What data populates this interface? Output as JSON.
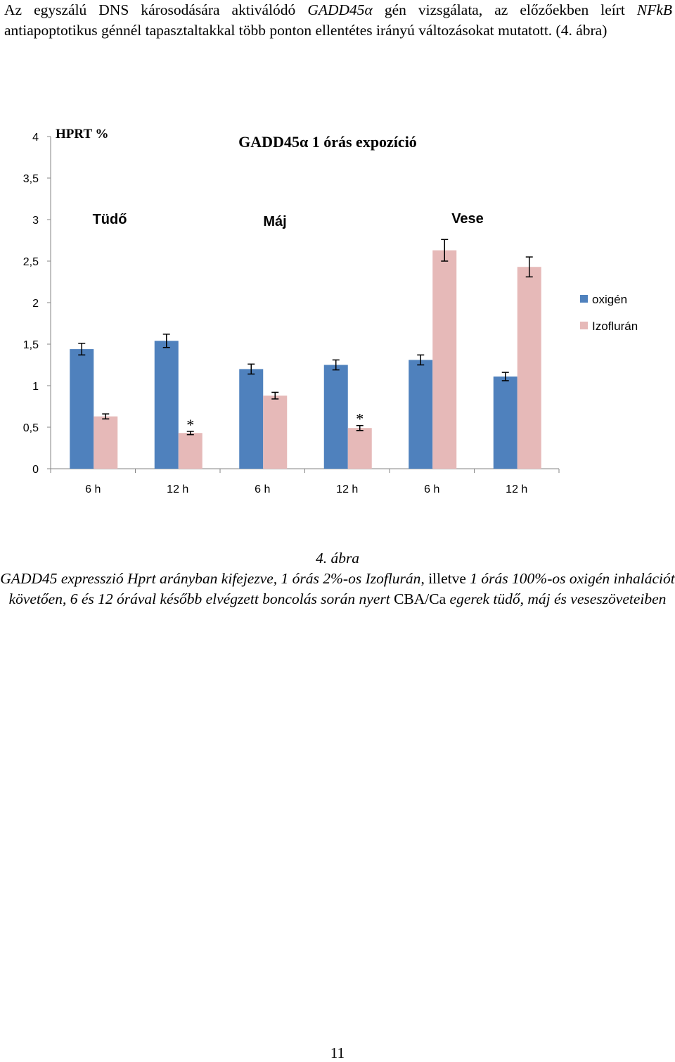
{
  "intro": {
    "p1": "Az egyszálú DNS károsodására aktiválódó ",
    "gene1": "GADD45α",
    "p2": " gén vizsgálata, az előzőekben leírt ",
    "gene2": "NFkB",
    "p3": " antiapoptotikus génnél tapasztaltakkal több ponton ellentétes irányú változásokat mutatott. (4. ábra)"
  },
  "chart_data": {
    "type": "bar",
    "title": "GADD45α 1 órás expozíció",
    "ylabel": "HPRT %",
    "xlabel": "",
    "ylim": [
      0,
      4
    ],
    "yticks": [
      "0",
      "0,5",
      "1",
      "1,5",
      "2",
      "2,5",
      "3",
      "3,5",
      "4"
    ],
    "grid": false,
    "legend_position": "right",
    "categories": [
      "6 h",
      "12 h",
      "6 h",
      "12 h",
      "6 h",
      "12 h"
    ],
    "groups": [
      "Tüdő",
      "Máj",
      "Vese"
    ],
    "series": [
      {
        "name": "oxigén",
        "color": "#4F81BD",
        "values": [
          1.44,
          1.54,
          1.2,
          1.25,
          1.31,
          1.11
        ],
        "errors": [
          0.07,
          0.08,
          0.06,
          0.06,
          0.06,
          0.05
        ]
      },
      {
        "name": "Izoflurán",
        "color": "#E6B9B8",
        "values": [
          0.63,
          0.43,
          0.88,
          0.49,
          2.63,
          2.43
        ],
        "errors": [
          0.03,
          0.02,
          0.04,
          0.03,
          0.13,
          0.12
        ]
      }
    ],
    "significance": [
      {
        "series": 1,
        "index": 1,
        "label": "*"
      },
      {
        "series": 1,
        "index": 3,
        "label": "*"
      }
    ]
  },
  "caption": {
    "line1": "4. ábra",
    "p1": "GADD45 expresszió Hprt arányban kifejezve, 1 órás 2%-os Izoflurán",
    "p2": ", illetve ",
    "p3": "1 órás 100%-os oxigén inhalációt követően, 6 és 12 órával később elvégzett boncolás során nyert ",
    "p4": "CBA/Ca",
    "p5": " ",
    "p6": "egerek tüdő, máj és veseszöveteiben"
  },
  "page_number": "11"
}
